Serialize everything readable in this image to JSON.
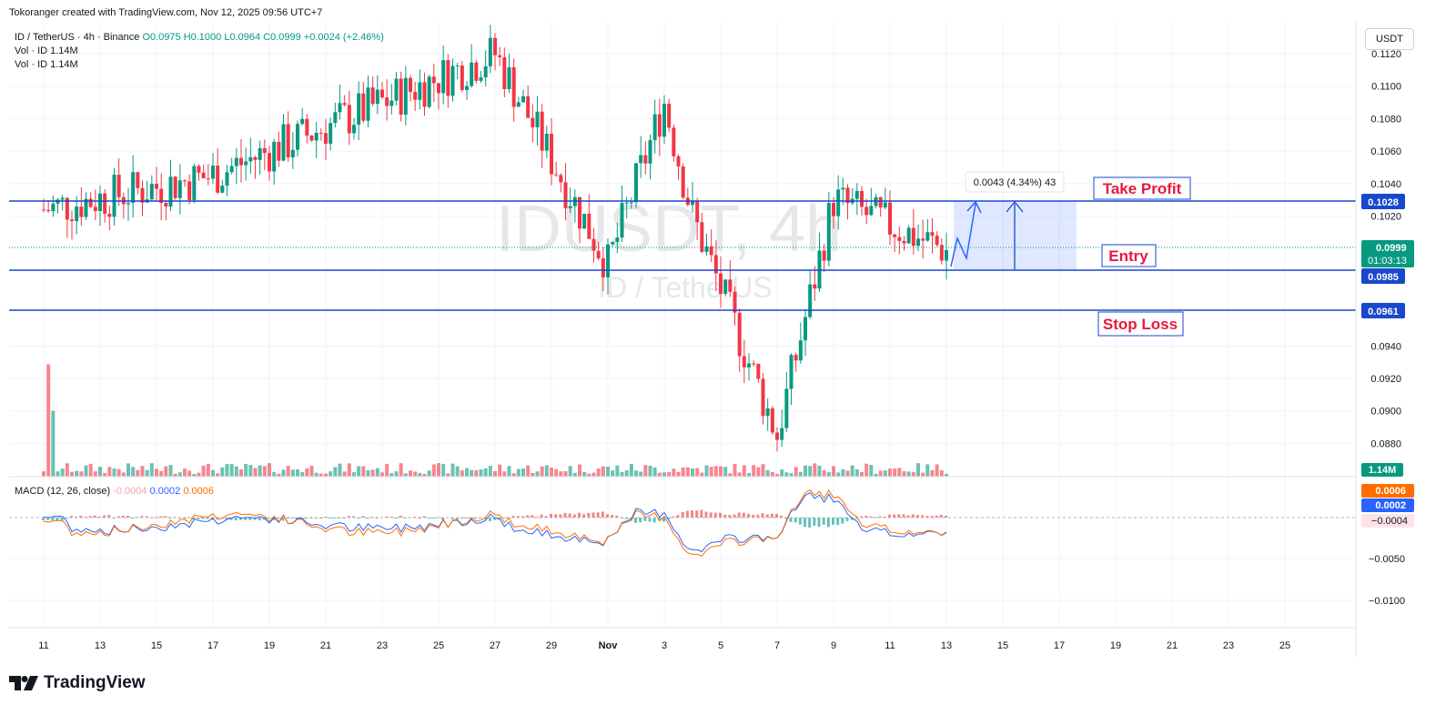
{
  "credit": "Tokoranger created with TradingView.com, Nov 12, 2025 09:56 UTC+7",
  "legend": {
    "symbol": "ID / TetherUS · 4h · Binance",
    "ohlc": "O0.0975 H0.1000 L0.0964 C0.0999 +0.0024 (+2.46%)",
    "vol1": "Vol · ID  1.14M",
    "vol2": "Vol · ID  1.14M"
  },
  "unit_button": "USDT",
  "watermark": {
    "ticker": "IDUSDT, 4h",
    "name": "ID / TetherUS"
  },
  "levels": {
    "take_profit": {
      "label": "Take Profit",
      "price": 0.1028,
      "text": "0.1028"
    },
    "entry": {
      "label": "Entry",
      "price": 0.0985,
      "text": "0.0985"
    },
    "stop_loss": {
      "label": "Stop Loss",
      "price": 0.0961,
      "text": "0.0961"
    }
  },
  "measure_label": "0.0043 (4.34%) 43",
  "last_price": {
    "text": "0.0999",
    "countdown": "01:03:13",
    "price": 0.0999
  },
  "volume_label": "1.14M",
  "macd": {
    "title": "MACD (12, 26, close)",
    "hist": "-0.0004",
    "macd": "0.0002",
    "signal": "0.0006",
    "labels": {
      "signal": "0.0006",
      "macd": "0.0002",
      "hist": "−0.0004"
    }
  },
  "footer": "TradingView",
  "colors": {
    "up": "#089981",
    "down": "#f23645",
    "level": "#1848cc",
    "label_text": "#e8183f",
    "macd_line": "#2962ff",
    "signal_line": "#ff6d00"
  },
  "chart_data": {
    "type": "candlestick",
    "title": "IDUSDT, 4h",
    "price_axis": {
      "ticks": [
        "0.1120",
        "0.1100",
        "0.1080",
        "0.1060",
        "0.1040",
        "0.1020",
        "0.0940",
        "0.0920",
        "0.0900",
        "0.0880"
      ],
      "range": [
        0.0869,
        0.1127
      ]
    },
    "macd_axis": {
      "ticks": [
        "−0.0050",
        "−0.0100"
      ]
    },
    "x_ticks": [
      "11",
      "13",
      "15",
      "17",
      "19",
      "21",
      "23",
      "25",
      "27",
      "29",
      "Nov",
      "3",
      "5",
      "7",
      "9",
      "11",
      "13",
      "15",
      "17",
      "19",
      "21",
      "23",
      "25"
    ],
    "key_points": [
      {
        "x": "Oct 11",
        "close": 0.1024
      },
      {
        "x": "Oct 17",
        "close": 0.1045
      },
      {
        "x": "Oct 27",
        "close": 0.112
      },
      {
        "x": "Oct 31",
        "close": 0.099
      },
      {
        "x": "Nov 2",
        "close": 0.109
      },
      {
        "x": "Nov 3",
        "close": 0.102
      },
      {
        "x": "Nov 6",
        "close": 0.0885
      },
      {
        "x": "Nov 8",
        "close": 0.103
      },
      {
        "x": "Nov 12",
        "close": 0.0999
      }
    ]
  }
}
